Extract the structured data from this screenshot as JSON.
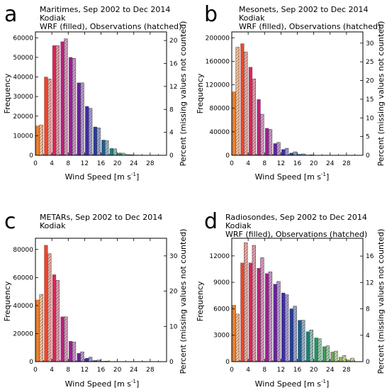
{
  "colors": {
    "bar_gradient": [
      "#f07f2a",
      "#e8472f",
      "#d92757",
      "#bd1f7e",
      "#9c1e93",
      "#6a1fa0",
      "#3f2ca4",
      "#263d96",
      "#1f5c8a",
      "#1f7f74",
      "#23925e",
      "#3a9c55",
      "#6aa748",
      "#8fb344"
    ],
    "obs_overlay": "#ffffff",
    "axis": "#000000"
  },
  "chart_data": [
    {
      "panel_letter": "a",
      "type": "bar",
      "title": "Maritimes, Sep 2002 to Dec 2014",
      "subtitle": "Kodiak",
      "legend_text": "WRF (filled), Observations (hatched)",
      "xlabel": "Wind Speed [m s",
      "xlabel_sup": "-1",
      "xlabel_end": "]",
      "ylabel": "Frequency",
      "y2label": "Percent (missing values not counted)",
      "xlim": [
        0,
        32
      ],
      "ylim": [
        0,
        63000
      ],
      "y2lim": [
        0,
        21.5
      ],
      "xticks": [
        "0",
        "4",
        "8",
        "12",
        "16",
        "20",
        "24",
        "28"
      ],
      "yticks": [
        "0",
        "10000",
        "20000",
        "30000",
        "40000",
        "50000",
        "60000"
      ],
      "y2ticks": [
        "0",
        "4",
        "8",
        "12",
        "16",
        "20"
      ],
      "bin_centers": [
        1,
        3,
        5,
        7,
        9,
        11,
        13,
        15,
        17,
        19,
        21,
        23,
        25,
        27,
        29
      ],
      "wrf": [
        15000,
        40000,
        56000,
        58000,
        50000,
        37000,
        25000,
        14500,
        7800,
        3500,
        1200,
        400,
        150,
        50,
        20
      ],
      "obs": [
        15500,
        39000,
        56000,
        59500,
        49500,
        37000,
        24000,
        14000,
        7500,
        3300,
        1100,
        300,
        100,
        40,
        10
      ]
    },
    {
      "panel_letter": "b",
      "type": "bar",
      "title": "Mesonets, Sep 2002 to Dec 2014",
      "subtitle": "Kodiak",
      "legend_text": "WRF (filled), Observations (hatched)",
      "xlabel": "Wind Speed [m s",
      "xlabel_sup": "-1",
      "xlabel_end": "]",
      "ylabel": "Frequency",
      "y2label": "Percent (missing values not counted)",
      "xlim": [
        0,
        32
      ],
      "ylim": [
        0,
        210000
      ],
      "y2lim": [
        0,
        33
      ],
      "xticks": [
        "0",
        "4",
        "8",
        "12",
        "16",
        "20",
        "24",
        "28"
      ],
      "yticks": [
        "0",
        "40000",
        "80000",
        "120000",
        "160000",
        "200000"
      ],
      "y2ticks": [
        "0",
        "5",
        "10",
        "15",
        "20",
        "25",
        "30"
      ],
      "bin_centers": [
        1,
        3,
        5,
        7,
        9,
        11,
        13,
        15,
        17,
        19,
        21,
        23,
        25,
        27,
        29
      ],
      "wrf": [
        108000,
        190000,
        150000,
        95000,
        46000,
        20000,
        10000,
        4000,
        1800,
        600,
        200,
        50,
        20,
        10,
        5
      ],
      "obs": [
        184000,
        176000,
        130000,
        70000,
        44000,
        22000,
        12000,
        6000,
        2500,
        900,
        300,
        80,
        30,
        10,
        5
      ]
    },
    {
      "panel_letter": "c",
      "type": "bar",
      "title": "METARs, Sep 2002 to Dec 2014",
      "subtitle": "Kodiak",
      "legend_text": "",
      "xlabel": "Wind Speed [m s",
      "xlabel_sup": "-1",
      "xlabel_end": "]",
      "ylabel": "Frequency",
      "y2label": "Percent (missing values not counted)",
      "xlim": [
        0,
        32
      ],
      "ylim": [
        0,
        88000
      ],
      "y2lim": [
        0,
        35
      ],
      "xticks": [
        "0",
        "4",
        "8",
        "12",
        "16",
        "20",
        "24",
        "28"
      ],
      "yticks": [
        "0",
        "20000",
        "40000",
        "60000",
        "80000"
      ],
      "y2ticks": [
        "0",
        "10",
        "20",
        "30"
      ],
      "bin_centers": [
        1,
        3,
        5,
        7,
        9,
        11,
        13,
        15,
        17,
        19,
        21,
        23,
        25,
        27,
        29
      ],
      "wrf": [
        44000,
        83000,
        62000,
        32000,
        14500,
        6000,
        2500,
        800,
        300,
        100,
        40,
        10,
        5,
        0,
        0
      ],
      "obs": [
        48000,
        77000,
        58000,
        32000,
        14000,
        7000,
        3200,
        1200,
        400,
        150,
        50,
        10,
        5,
        0,
        0
      ]
    },
    {
      "panel_letter": "d",
      "type": "bar",
      "title": "Radiosondes, Sep 2002 to Dec 2014",
      "subtitle": "Kodiak",
      "legend_text": "WRF (filled), Observations (hatched)",
      "xlabel": "Wind Speed [m s",
      "xlabel_sup": "-1",
      "xlabel_end": "]",
      "ylabel": "Frequency",
      "y2label": "Percent (missing values not counted)",
      "xlim": [
        0,
        32
      ],
      "ylim": [
        0,
        14000
      ],
      "y2lim": [
        0,
        18.7
      ],
      "xticks": [
        "0",
        "4",
        "8",
        "12",
        "16",
        "20",
        "24",
        "28"
      ],
      "yticks": [
        "0",
        "3000",
        "6000",
        "9000",
        "12000"
      ],
      "y2ticks": [
        "0",
        "4",
        "8",
        "12",
        "16"
      ],
      "bin_centers": [
        1,
        3,
        5,
        7,
        9,
        11,
        13,
        15,
        17,
        19,
        21,
        23,
        25,
        27,
        29
      ],
      "wrf": [
        6400,
        11200,
        11200,
        10600,
        10000,
        8800,
        7800,
        6000,
        4700,
        3400,
        2700,
        1700,
        1100,
        500,
        200
      ],
      "obs": [
        5400,
        13500,
        13200,
        11800,
        10200,
        9100,
        7600,
        6300,
        4700,
        3600,
        2600,
        1800,
        1200,
        700,
        400
      ]
    }
  ]
}
